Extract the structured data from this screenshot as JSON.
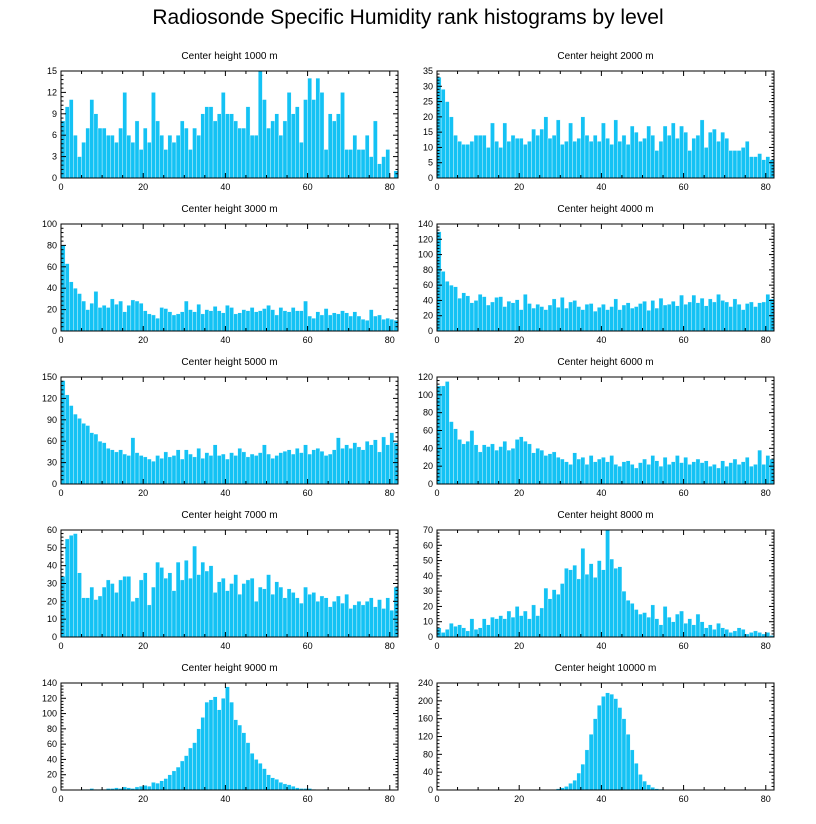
{
  "figure": {
    "title": "Radiosonde Specific Humidity rank histograms by level",
    "bar_color": "#14c2f4",
    "bar_edge_color": "#ffffff"
  },
  "chart_data": [
    {
      "type": "bar",
      "title": "Center height 1000 m",
      "xlim": [
        0,
        82
      ],
      "ylim": [
        0,
        15
      ],
      "xticks": [
        0,
        20,
        40,
        60,
        80
      ],
      "yticks": [
        0,
        3,
        6,
        9,
        12,
        15
      ],
      "values": [
        8,
        10,
        11,
        6,
        3,
        5,
        7,
        11,
        9,
        7,
        7,
        6,
        6,
        5,
        7,
        12,
        6,
        5,
        8,
        4,
        7,
        5,
        12,
        8,
        6,
        4,
        6,
        5,
        6,
        8,
        7,
        4,
        7,
        6,
        9,
        10,
        10,
        8,
        9,
        12,
        9,
        9,
        8,
        7,
        7,
        10,
        6,
        6,
        15,
        11,
        7,
        8,
        9,
        6,
        8,
        12,
        9,
        10,
        5,
        11,
        14,
        11,
        14,
        12,
        4,
        9,
        8,
        9,
        12,
        4,
        4,
        6,
        4,
        4,
        6,
        3,
        8,
        2,
        3,
        4,
        0,
        1,
        0
      ]
    },
    {
      "type": "bar",
      "title": "Center height 2000 m",
      "xlim": [
        0,
        82
      ],
      "ylim": [
        0,
        35
      ],
      "xticks": [
        0,
        20,
        40,
        60,
        80
      ],
      "yticks": [
        0,
        5,
        10,
        15,
        20,
        25,
        30,
        35
      ],
      "values": [
        33,
        29,
        25,
        20,
        14,
        12,
        11,
        11,
        12,
        14,
        14,
        14,
        10,
        18,
        12,
        10,
        18,
        12,
        14,
        13,
        13,
        11,
        12,
        16,
        14,
        16,
        20,
        13,
        14,
        19,
        11,
        12,
        18,
        12,
        13,
        20,
        14,
        12,
        14,
        12,
        18,
        13,
        11,
        19,
        12,
        14,
        11,
        17,
        15,
        12,
        13,
        17,
        14,
        9,
        12,
        17,
        14,
        18,
        13,
        17,
        15,
        9,
        13,
        14,
        19,
        10,
        15,
        16,
        12,
        15,
        13,
        9,
        9,
        9,
        10,
        12,
        7,
        7,
        8,
        6,
        7,
        6,
        0
      ]
    },
    {
      "type": "bar",
      "title": "Center height 3000 m",
      "xlim": [
        0,
        82
      ],
      "ylim": [
        0,
        100
      ],
      "xticks": [
        0,
        20,
        40,
        60,
        80
      ],
      "yticks": [
        0,
        20,
        40,
        60,
        80,
        100
      ],
      "values": [
        80,
        63,
        46,
        40,
        35,
        28,
        20,
        26,
        37,
        22,
        24,
        22,
        30,
        25,
        28,
        18,
        24,
        29,
        28,
        26,
        19,
        16,
        15,
        12,
        22,
        21,
        18,
        15,
        16,
        18,
        28,
        20,
        18,
        25,
        16,
        20,
        19,
        23,
        19,
        17,
        24,
        22,
        16,
        17,
        20,
        19,
        22,
        18,
        19,
        21,
        24,
        20,
        15,
        22,
        19,
        18,
        22,
        19,
        19,
        28,
        14,
        12,
        18,
        15,
        21,
        15,
        17,
        16,
        19,
        17,
        14,
        18,
        14,
        11,
        10,
        20,
        14,
        15,
        11,
        12,
        11,
        10,
        0
      ]
    },
    {
      "type": "bar",
      "title": "Center height 4000 m",
      "xlim": [
        0,
        82
      ],
      "ylim": [
        0,
        140
      ],
      "xticks": [
        0,
        20,
        40,
        60,
        80
      ],
      "yticks": [
        0,
        20,
        40,
        60,
        80,
        100,
        120,
        140
      ],
      "values": [
        130,
        78,
        65,
        60,
        58,
        43,
        50,
        46,
        37,
        40,
        48,
        45,
        34,
        38,
        44,
        45,
        32,
        39,
        37,
        41,
        28,
        48,
        36,
        30,
        35,
        32,
        28,
        34,
        42,
        31,
        44,
        30,
        38,
        40,
        32,
        28,
        35,
        36,
        26,
        31,
        35,
        28,
        32,
        42,
        28,
        34,
        37,
        30,
        32,
        36,
        39,
        27,
        40,
        30,
        43,
        34,
        35,
        39,
        33,
        47,
        35,
        38,
        47,
        37,
        43,
        33,
        42,
        38,
        48,
        40,
        38,
        32,
        42,
        35,
        28,
        36,
        38,
        32,
        37,
        38,
        48,
        42,
        0
      ]
    },
    {
      "type": "bar",
      "title": "Center height 5000 m",
      "xlim": [
        0,
        82
      ],
      "ylim": [
        0,
        150
      ],
      "xticks": [
        0,
        20,
        40,
        60,
        80
      ],
      "yticks": [
        0,
        30,
        60,
        90,
        120,
        150
      ],
      "values": [
        145,
        125,
        110,
        98,
        92,
        85,
        82,
        72,
        70,
        60,
        58,
        50,
        48,
        45,
        48,
        42,
        40,
        65,
        44,
        40,
        38,
        35,
        32,
        40,
        36,
        45,
        38,
        40,
        48,
        35,
        48,
        42,
        38,
        50,
        36,
        44,
        40,
        55,
        40,
        42,
        35,
        44,
        40,
        50,
        45,
        38,
        42,
        40,
        44,
        55,
        42,
        36,
        40,
        44,
        46,
        48,
        42,
        50,
        44,
        55,
        42,
        48,
        50,
        46,
        40,
        42,
        48,
        65,
        50,
        55,
        50,
        58,
        52,
        48,
        60,
        55,
        62,
        45,
        66,
        55,
        72,
        58,
        0
      ]
    },
    {
      "type": "bar",
      "title": "Center height 6000 m",
      "xlim": [
        0,
        82
      ],
      "ylim": [
        0,
        120
      ],
      "xticks": [
        0,
        20,
        40,
        60,
        80
      ],
      "yticks": [
        0,
        20,
        40,
        60,
        80,
        100,
        120
      ],
      "values": [
        110,
        110,
        115,
        70,
        62,
        50,
        45,
        48,
        60,
        44,
        36,
        44,
        42,
        45,
        38,
        42,
        48,
        38,
        40,
        50,
        53,
        48,
        45,
        35,
        40,
        38,
        32,
        34,
        36,
        30,
        28,
        25,
        22,
        35,
        28,
        30,
        22,
        32,
        25,
        28,
        30,
        25,
        32,
        22,
        20,
        25,
        26,
        22,
        18,
        24,
        28,
        22,
        32,
        26,
        20,
        30,
        22,
        25,
        32,
        24,
        30,
        22,
        25,
        28,
        24,
        26,
        20,
        22,
        18,
        26,
        20,
        24,
        28,
        22,
        25,
        30,
        20,
        22,
        38,
        22,
        32,
        28,
        0
      ]
    },
    {
      "type": "bar",
      "title": "Center height 7000 m",
      "xlim": [
        0,
        82
      ],
      "ylim": [
        0,
        60
      ],
      "xticks": [
        0,
        20,
        40,
        60,
        80
      ],
      "yticks": [
        0,
        10,
        20,
        30,
        40,
        50,
        60
      ],
      "values": [
        34,
        55,
        57,
        58,
        36,
        22,
        22,
        28,
        21,
        23,
        28,
        32,
        30,
        25,
        32,
        34,
        34,
        20,
        22,
        32,
        36,
        18,
        28,
        42,
        39,
        33,
        36,
        26,
        42,
        32,
        43,
        33,
        51,
        35,
        42,
        37,
        40,
        25,
        31,
        33,
        26,
        30,
        35,
        24,
        30,
        32,
        33,
        20,
        28,
        27,
        35,
        24,
        31,
        28,
        22,
        27,
        25,
        22,
        19,
        28,
        24,
        25,
        20,
        23,
        22,
        17,
        20,
        23,
        19,
        24,
        16,
        18,
        20,
        18,
        20,
        22,
        17,
        21,
        16,
        22,
        15,
        28,
        0
      ]
    },
    {
      "type": "bar",
      "title": "Center height 8000 m",
      "xlim": [
        0,
        82
      ],
      "ylim": [
        0,
        70
      ],
      "xticks": [
        0,
        20,
        40,
        60,
        80
      ],
      "yticks": [
        0,
        10,
        20,
        30,
        40,
        50,
        60,
        70
      ],
      "values": [
        6,
        3,
        5,
        9,
        7,
        8,
        6,
        4,
        12,
        5,
        6,
        12,
        8,
        13,
        12,
        14,
        12,
        17,
        13,
        20,
        14,
        17,
        12,
        21,
        14,
        19,
        32,
        25,
        31,
        28,
        35,
        45,
        44,
        47,
        38,
        58,
        41,
        48,
        39,
        50,
        44,
        70,
        51,
        45,
        46,
        30,
        24,
        22,
        18,
        15,
        16,
        13,
        21,
        12,
        8,
        20,
        13,
        10,
        15,
        17,
        9,
        12,
        8,
        15,
        10,
        6,
        8,
        5,
        9,
        6,
        5,
        3,
        4,
        6,
        5,
        2,
        3,
        4,
        3,
        2,
        3,
        1,
        0
      ]
    },
    {
      "type": "bar",
      "title": "Center height 9000 m",
      "xlim": [
        0,
        82
      ],
      "ylim": [
        0,
        140
      ],
      "xticks": [
        0,
        20,
        40,
        60,
        80
      ],
      "yticks": [
        0,
        20,
        40,
        60,
        80,
        100,
        120,
        140
      ],
      "values": [
        0,
        0,
        0,
        0,
        0,
        1,
        1,
        2,
        1,
        1,
        1,
        2,
        2,
        3,
        2,
        4,
        3,
        2,
        4,
        5,
        6,
        5,
        10,
        9,
        12,
        15,
        20,
        25,
        30,
        38,
        45,
        55,
        62,
        80,
        95,
        115,
        118,
        122,
        105,
        120,
        135,
        115,
        92,
        85,
        75,
        62,
        48,
        40,
        35,
        28,
        20,
        16,
        14,
        10,
        8,
        7,
        5,
        3,
        2,
        2,
        2,
        1,
        0,
        0,
        1,
        0,
        0,
        0,
        0,
        0,
        0,
        0,
        0,
        0,
        0,
        0,
        0,
        0,
        0,
        0,
        0,
        0,
        0
      ]
    },
    {
      "type": "bar",
      "title": "Center height 10000 m",
      "xlim": [
        0,
        82
      ],
      "ylim": [
        0,
        240
      ],
      "xticks": [
        0,
        20,
        40,
        60,
        80
      ],
      "yticks": [
        0,
        40,
        80,
        120,
        160,
        200,
        240
      ],
      "values": [
        0,
        0,
        0,
        0,
        0,
        0,
        0,
        0,
        0,
        0,
        0,
        0,
        0,
        0,
        0,
        0,
        0,
        0,
        0,
        0,
        0,
        0,
        0,
        0,
        0,
        0,
        0,
        0,
        1,
        3,
        5,
        8,
        15,
        22,
        38,
        58,
        90,
        125,
        160,
        190,
        210,
        218,
        215,
        205,
        185,
        160,
        125,
        90,
        60,
        35,
        20,
        12,
        6,
        3,
        2,
        1,
        1,
        0,
        0,
        0,
        0,
        0,
        0,
        0,
        0,
        0,
        0,
        0,
        0,
        0,
        0,
        0,
        0,
        0,
        0,
        0,
        0,
        0,
        0,
        0,
        0,
        0,
        0
      ]
    }
  ]
}
